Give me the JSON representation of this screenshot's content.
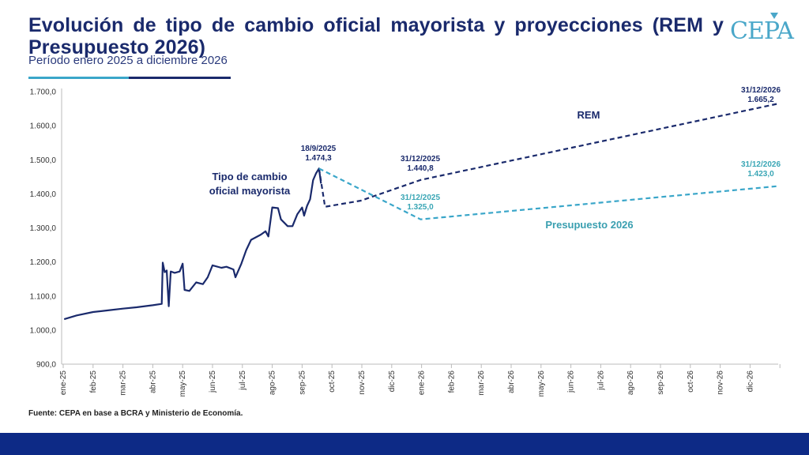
{
  "header": {
    "title": "Evolución de tipo de cambio oficial mayorista y proyecciones (REM y Presupuesto 2026)",
    "subtitle": "Período enero 2025 a diciembre 2026",
    "logo_text": "CEPA"
  },
  "footer": {
    "source": "Fuente: CEPA en base a BCRA y Ministerio de Economía."
  },
  "colors": {
    "navy": "#1a2a6c",
    "teal": "#3aa6c9",
    "footer": "#0d2a86"
  },
  "chart_data": {
    "type": "line",
    "title": "Evolución de tipo de cambio oficial mayorista y proyecciones (REM y Presupuesto 2026)",
    "subtitle": "Período enero 2025 a diciembre 2026",
    "xlabel": "",
    "ylabel": "",
    "ylim": [
      900,
      1700
    ],
    "y_ticks": [
      900,
      1000,
      1100,
      1200,
      1300,
      1400,
      1500,
      1600,
      1700
    ],
    "y_tick_labels": [
      "900,0",
      "1.000,0",
      "1.100,0",
      "1.200,0",
      "1.300,0",
      "1.400,0",
      "1.500,0",
      "1.600,0",
      "1.700,0"
    ],
    "x_tick_labels": [
      "ene-25",
      "feb-25",
      "mar-25",
      "abr-25",
      "may-25",
      "jun-25",
      "jul-25",
      "ago-25",
      "sep-25",
      "oct-25",
      "nov-25",
      "dic-25",
      "ene-26",
      "feb-26",
      "mar-26",
      "abr-26",
      "may-26",
      "jun-26",
      "jul-26",
      "ago-26",
      "sep-26",
      "oct-26",
      "nov-26",
      "dic-26"
    ],
    "grid": false,
    "series": [
      {
        "name": "Tipo de cambio oficial mayorista",
        "color": "#1a2a6c",
        "style": "solid",
        "points": [
          [
            "2025-01-02",
            1032
          ],
          [
            "2025-01-15",
            1043
          ],
          [
            "2025-02-01",
            1053
          ],
          [
            "2025-02-15",
            1058
          ],
          [
            "2025-03-01",
            1063
          ],
          [
            "2025-03-15",
            1067
          ],
          [
            "2025-04-01",
            1073
          ],
          [
            "2025-04-10",
            1077
          ],
          [
            "2025-04-11",
            1198
          ],
          [
            "2025-04-13",
            1170
          ],
          [
            "2025-04-15",
            1175
          ],
          [
            "2025-04-17",
            1070
          ],
          [
            "2025-04-19",
            1172
          ],
          [
            "2025-04-23",
            1168
          ],
          [
            "2025-04-28",
            1172
          ],
          [
            "2025-05-01",
            1195
          ],
          [
            "2025-05-03",
            1118
          ],
          [
            "2025-05-08",
            1115
          ],
          [
            "2025-05-15",
            1140
          ],
          [
            "2025-05-22",
            1135
          ],
          [
            "2025-05-27",
            1155
          ],
          [
            "2025-06-01",
            1190
          ],
          [
            "2025-06-10",
            1183
          ],
          [
            "2025-06-15",
            1186
          ],
          [
            "2025-06-22",
            1178
          ],
          [
            "2025-06-24",
            1155
          ],
          [
            "2025-06-30",
            1195
          ],
          [
            "2025-07-05",
            1235
          ],
          [
            "2025-07-10",
            1265
          ],
          [
            "2025-07-20",
            1280
          ],
          [
            "2025-07-25",
            1290
          ],
          [
            "2025-07-28",
            1275
          ],
          [
            "2025-08-01",
            1360
          ],
          [
            "2025-08-07",
            1358
          ],
          [
            "2025-08-10",
            1325
          ],
          [
            "2025-08-17",
            1305
          ],
          [
            "2025-08-22",
            1305
          ],
          [
            "2025-08-27",
            1340
          ],
          [
            "2025-09-01",
            1360
          ],
          [
            "2025-09-03",
            1336
          ],
          [
            "2025-09-06",
            1365
          ],
          [
            "2025-09-09",
            1384
          ],
          [
            "2025-09-12",
            1440
          ],
          [
            "2025-09-15",
            1460
          ],
          [
            "2025-09-18",
            1474.3
          ],
          [
            "2025-09-20",
            1430
          ]
        ]
      },
      {
        "name": "REM",
        "color": "#1a2a6c",
        "style": "dashed",
        "points": [
          [
            "2025-09-18",
            1474.3
          ],
          [
            "2025-09-24",
            1362
          ],
          [
            "2025-10-31",
            1380
          ],
          [
            "2025-12-31",
            1440.8
          ],
          [
            "2026-12-31",
            1665.2
          ]
        ]
      },
      {
        "name": "Presupuesto 2026",
        "color": "#3aa6c9",
        "style": "dashed",
        "points": [
          [
            "2025-09-18",
            1474.3
          ],
          [
            "2025-12-31",
            1325.0
          ],
          [
            "2026-12-31",
            1423.0
          ]
        ]
      }
    ],
    "annotations": [
      {
        "date_label": "18/9/2025",
        "value_label": "1.474,3",
        "x": "2025-09-18",
        "y": 1474.3,
        "series": "Tipo de cambio oficial mayorista"
      },
      {
        "date_label": "31/12/2025",
        "value_label": "1.440,8",
        "x": "2025-12-31",
        "y": 1440.8,
        "series": "REM"
      },
      {
        "date_label": "31/12/2025",
        "value_label": "1.325,0",
        "x": "2025-12-31",
        "y": 1325.0,
        "series": "Presupuesto 2026"
      },
      {
        "date_label": "31/12/2026",
        "value_label": "1.665,2",
        "x": "2026-12-31",
        "y": 1665.2,
        "series": "REM"
      },
      {
        "date_label": "31/12/2026",
        "value_label": "1.423,0",
        "x": "2026-12-31",
        "y": 1423.0,
        "series": "Presupuesto 2026"
      }
    ]
  }
}
